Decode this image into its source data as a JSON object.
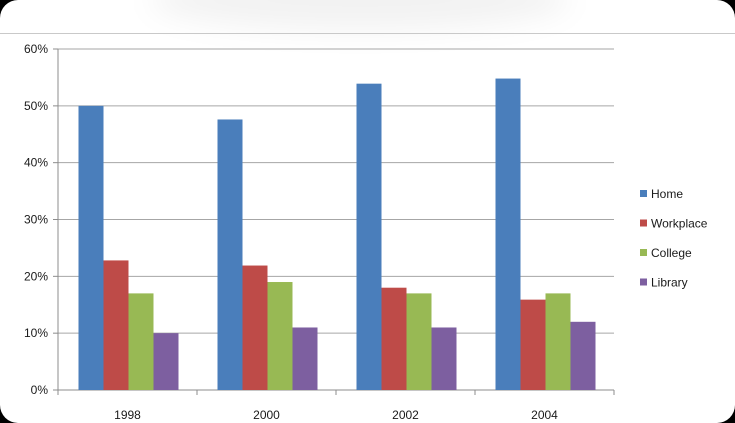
{
  "chart_data": {
    "type": "bar",
    "title": "",
    "xlabel": "",
    "ylabel": "",
    "categories": [
      "1998",
      "2000",
      "2002",
      "2004"
    ],
    "series": [
      {
        "name": "Home",
        "values": [
          50,
          47.6,
          53.9,
          54.8
        ],
        "color": "#4a7ebb"
      },
      {
        "name": "Workplace",
        "values": [
          22.8,
          21.9,
          18,
          15.9
        ],
        "color": "#be4b48"
      },
      {
        "name": "College",
        "values": [
          17,
          19,
          17,
          17
        ],
        "color": "#98b954"
      },
      {
        "name": "Library",
        "values": [
          10,
          11,
          11,
          12
        ],
        "color": "#7d5fa0"
      }
    ],
    "ylim": [
      0,
      60
    ],
    "yticks": [
      "0%",
      "10%",
      "20%",
      "30%",
      "40%",
      "50%",
      "60%"
    ],
    "grid": true,
    "legend_position": "right"
  }
}
